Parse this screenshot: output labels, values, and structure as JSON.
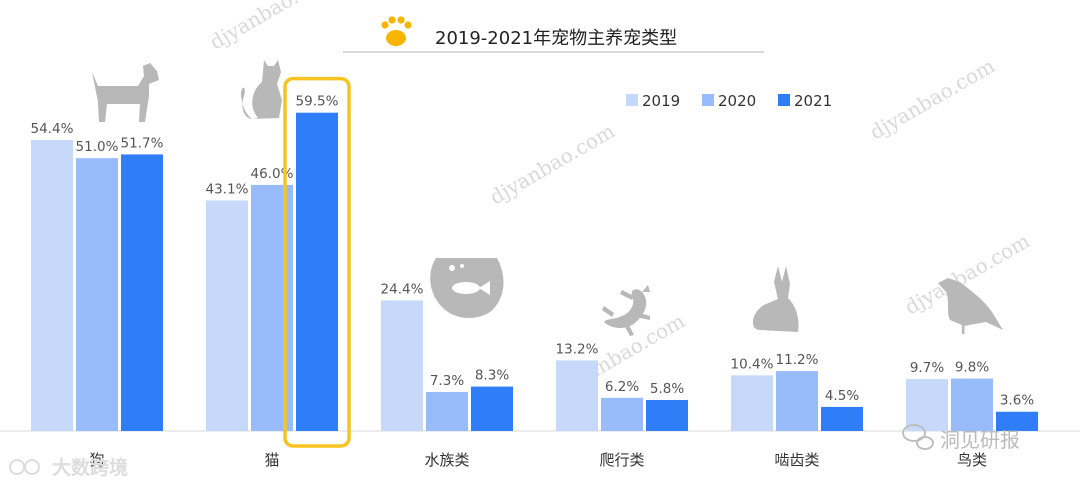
{
  "chart_data": {
    "type": "bar",
    "title": "2019-2021年宠物主养宠类型",
    "categories": [
      "狗",
      "猫",
      "水族类",
      "爬行类",
      "啮齿类",
      "鸟类"
    ],
    "series": [
      {
        "name": "2019",
        "values": [
          54.4,
          43.1,
          24.4,
          13.2,
          10.4,
          9.7
        ]
      },
      {
        "name": "2020",
        "values": [
          51.0,
          46.0,
          7.3,
          6.2,
          11.2,
          9.8
        ]
      },
      {
        "name": "2021",
        "values": [
          51.7,
          59.5,
          8.3,
          5.8,
          4.5,
          3.6
        ]
      }
    ],
    "value_suffix": "%",
    "ylim": [
      0,
      62
    ],
    "legend_position": "top-right",
    "highlight": {
      "category": "猫",
      "series": "2021"
    }
  },
  "colors": {
    "series": [
      "#c6d9fb",
      "#98bcf9",
      "#2f7ef7"
    ],
    "highlight_border": "#f7c31f",
    "icon": "#b8b8b8",
    "paw": "#f7b500"
  },
  "icons": [
    "paw-icon",
    "dog-icon",
    "cat-icon",
    "fish-bowl-icon",
    "lizard-icon",
    "rabbit-icon",
    "bird-icon"
  ],
  "branding": {
    "watermark": "djyanbao.com",
    "wechat_label": "洞见研报",
    "source_label": "大数跨境"
  }
}
